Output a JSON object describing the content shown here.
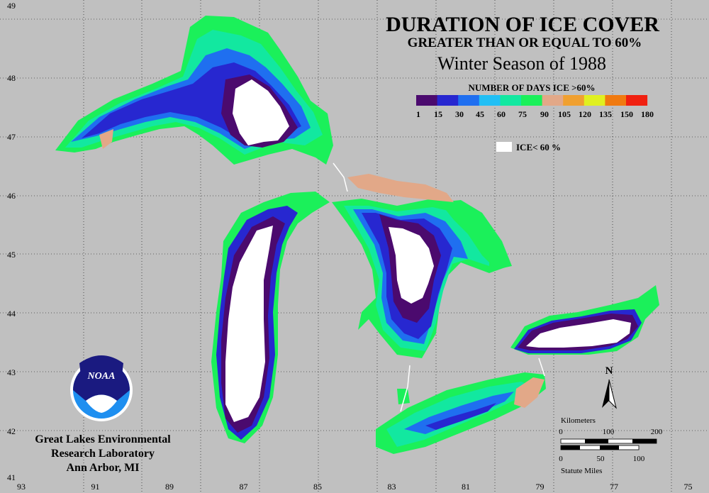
{
  "title": {
    "line1": "DURATION OF ICE COVER",
    "line2": "GREATER THAN OR EQUAL TO 60%",
    "line3": "Winter Season of 1988"
  },
  "legend": {
    "heading": "NUMBER OF DAYS ICE >60%",
    "ticks": [
      "1",
      "15",
      "30",
      "45",
      "60",
      "75",
      "90",
      "105",
      "120",
      "135",
      "150",
      "180"
    ],
    "colors": [
      "#4b0a6e",
      "#2727d0",
      "#1f6ff0",
      "#21bff5",
      "#12e8a0",
      "#1bf05a",
      "#e2a888",
      "#f0a030",
      "#e0f020",
      "#f07a10",
      "#f02010",
      "#e020a0"
    ],
    "white_label": "ICE< 60 %"
  },
  "axes": {
    "lon_labels": [
      "93",
      "91",
      "89",
      "87",
      "85",
      "83",
      "81",
      "79",
      "77",
      "75"
    ],
    "lat_labels": [
      "49",
      "48",
      "47",
      "46",
      "45",
      "44",
      "43",
      "42",
      "41"
    ]
  },
  "lab": {
    "line1": "Great Lakes Environmental",
    "line2": "Research Laboratory",
    "line3": "Ann Arbor, MI",
    "logo_text": "NOAA"
  },
  "north_label": "N",
  "scale": {
    "km_label": "Kilometers",
    "km_ticks": [
      "0",
      "100",
      "200"
    ],
    "mi_ticks": [
      "0",
      "50",
      "100"
    ],
    "mi_label": "Statute Miles"
  }
}
